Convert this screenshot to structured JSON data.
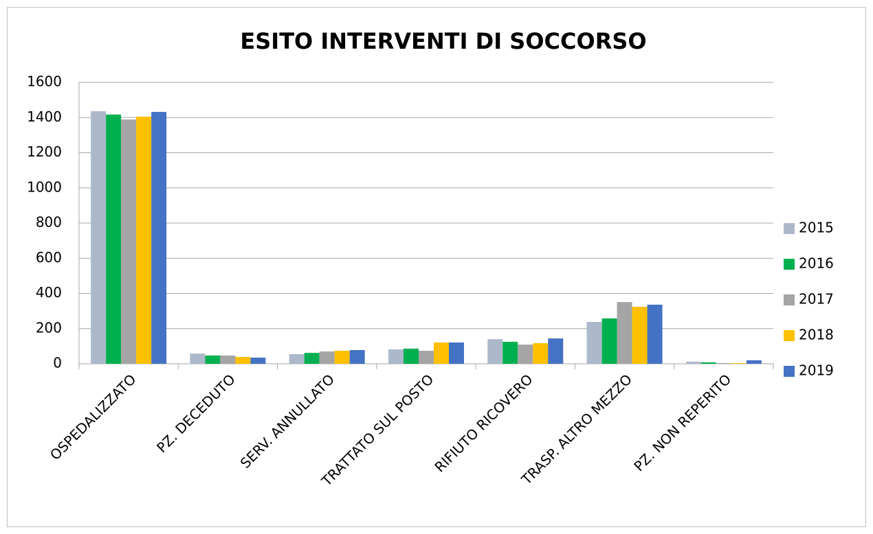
{
  "chart_data": {
    "type": "bar",
    "title": "ESITO INTERVENTI DI SOCCORSO",
    "categories": [
      "OSPEDALIZZATO",
      "PZ. DECEDUTO",
      "SERV. ANNULLATO",
      "TRATTATO SUL POSTO",
      "RIFIUTO RICOVERO",
      "TRASP. ALTRO MEZZO",
      "PZ. NON REPERITO"
    ],
    "series": [
      {
        "name": "2015",
        "color": "#adb9ca",
        "values": [
          1436,
          58,
          55,
          82,
          140,
          238,
          12
        ]
      },
      {
        "name": "2016",
        "color": "#00b050",
        "values": [
          1417,
          47,
          62,
          86,
          125,
          258,
          8
        ]
      },
      {
        "name": "2017",
        "color": "#a5a5a5",
        "values": [
          1389,
          47,
          70,
          74,
          109,
          351,
          4
        ]
      },
      {
        "name": "2018",
        "color": "#ffc000",
        "values": [
          1405,
          39,
          74,
          121,
          117,
          324,
          4
        ]
      },
      {
        "name": "2019",
        "color": "#4472c4",
        "values": [
          1432,
          35,
          78,
          121,
          144,
          336,
          20
        ]
      }
    ],
    "ylim": [
      0,
      1600
    ],
    "yticks": [
      0,
      200,
      400,
      600,
      800,
      1000,
      1200,
      1400,
      1600
    ],
    "grid": true,
    "legend": "right"
  }
}
